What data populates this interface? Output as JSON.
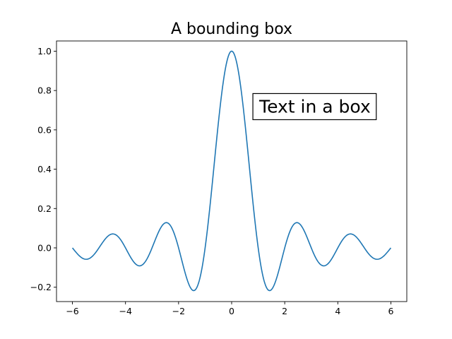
{
  "chart_data": {
    "type": "line",
    "title": "A bounding box",
    "xlabel": "",
    "ylabel": "",
    "xlim": [
      -6.6,
      6.6
    ],
    "ylim": [
      -0.273,
      1.052
    ],
    "xticks": [
      -6,
      -4,
      -2,
      0,
      2,
      4,
      6
    ],
    "xtick_labels": [
      "−6",
      "−4",
      "−2",
      "0",
      "2",
      "4",
      "6"
    ],
    "yticks": [
      -0.2,
      0.0,
      0.2,
      0.4,
      0.6,
      0.8,
      1.0
    ],
    "ytick_labels": [
      "−0.2",
      "0.0",
      "0.2",
      "0.4",
      "0.6",
      "0.8",
      "1.0"
    ],
    "grid": false,
    "series": [
      {
        "function": "sinc",
        "formula": "y = sin(pi*x)/(pi*x)",
        "x_range": [
          -6,
          6
        ],
        "x": [
          -6,
          -5.5,
          -5,
          -4.5,
          -4,
          -3.5,
          -3,
          -2.5,
          -2,
          -1.5,
          -1,
          -0.5,
          0,
          0.5,
          1,
          1.5,
          2,
          2.5,
          3,
          3.5,
          4,
          4.5,
          5,
          5.5,
          6
        ],
        "y": [
          0,
          -0.058,
          0,
          0.071,
          0,
          -0.091,
          0,
          0.127,
          0,
          -0.212,
          0,
          0.637,
          1,
          0.637,
          0,
          -0.212,
          0,
          0.127,
          0,
          -0.091,
          0,
          0.071,
          0,
          -0.058,
          0
        ],
        "color": "#1f77b4"
      }
    ],
    "annotations": [
      {
        "text": "Text in a box",
        "x": 0.8,
        "y": 0.72,
        "boxed": true
      }
    ]
  }
}
